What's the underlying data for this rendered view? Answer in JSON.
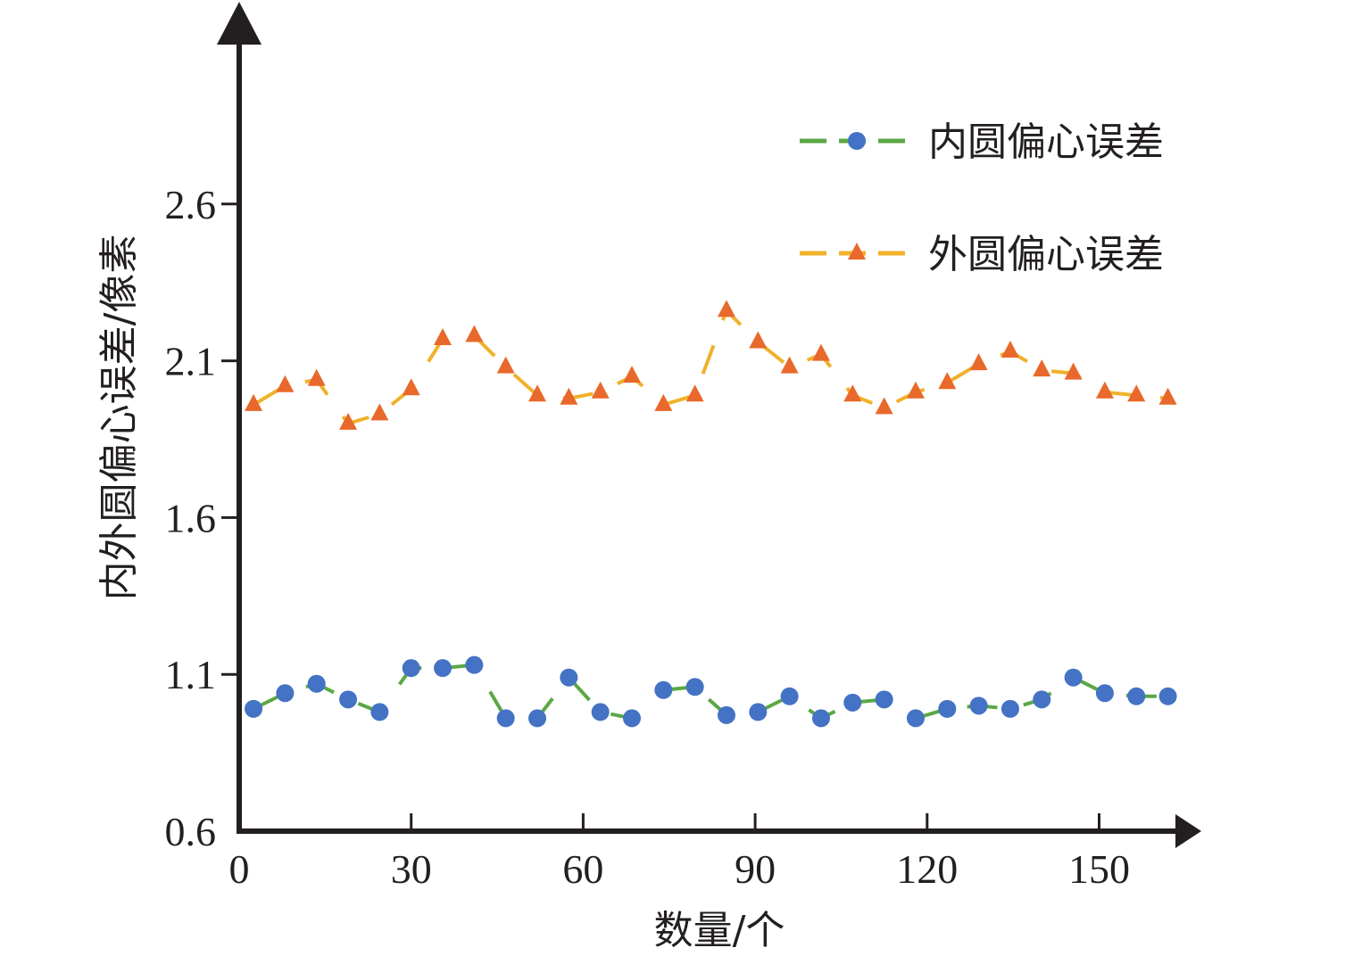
{
  "chart_data": {
    "type": "line",
    "xlabel": "数量/个",
    "ylabel": "内外圆偏心误差/像素",
    "xlim": [
      0,
      163
    ],
    "ylim": [
      0.6,
      3.1
    ],
    "x_ticks": [
      "0",
      "30",
      "60",
      "90",
      "120",
      "150"
    ],
    "x_tick_values": [
      0,
      30,
      60,
      90,
      120,
      150
    ],
    "y_ticks": [
      "0.6",
      "1.1",
      "1.6",
      "2.1",
      "2.6"
    ],
    "y_tick_values": [
      0.6,
      1.1,
      1.6,
      2.1,
      2.6
    ],
    "legend_position": "top-right",
    "x": [
      2.5,
      8,
      13.5,
      19,
      24.5,
      30,
      35.5,
      41,
      46.5,
      52,
      57.5,
      63,
      68.5,
      74,
      79.5,
      85,
      90.5,
      96,
      101.5,
      107,
      112.5,
      118,
      123.5,
      129,
      134.5,
      140,
      145.5,
      151,
      156.5,
      162
    ],
    "series": [
      {
        "name": "内圆偏心误差",
        "color_line": "#5aa845",
        "color_marker": "#4472c4",
        "marker": "circle",
        "values": [
          0.99,
          1.04,
          1.07,
          1.02,
          0.98,
          1.12,
          1.12,
          1.13,
          0.96,
          0.96,
          1.09,
          0.98,
          0.96,
          1.05,
          1.06,
          0.97,
          0.98,
          1.03,
          0.96,
          1.01,
          1.02,
          0.96,
          0.99,
          1.0,
          0.99,
          1.02,
          1.09,
          1.04,
          1.03,
          1.03
        ]
      },
      {
        "name": "外圆偏心误差",
        "color_line": "#f0b12a",
        "color_marker": "#e8692b",
        "marker": "triangle",
        "values": [
          1.96,
          2.02,
          2.04,
          1.9,
          1.93,
          2.01,
          2.17,
          2.18,
          2.08,
          1.99,
          1.98,
          2.0,
          2.05,
          1.96,
          1.99,
          2.26,
          2.16,
          2.08,
          2.12,
          1.99,
          1.95,
          2.0,
          2.03,
          2.09,
          2.13,
          2.07,
          2.06,
          2.0,
          1.99,
          1.98
        ]
      }
    ]
  }
}
